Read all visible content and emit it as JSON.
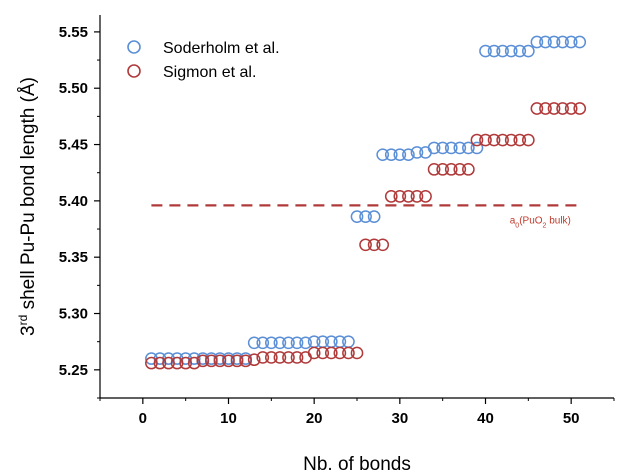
{
  "chart_data": {
    "type": "scatter",
    "xlabel": "Nb. of bonds",
    "ylabel_parts": {
      "pre": "3",
      "sup": "rd",
      "post": " shell Pu-Pu bond length (Å)"
    },
    "xlim": [
      -5,
      55
    ],
    "ylim": [
      5.225,
      5.565
    ],
    "x_ticks": [
      0,
      10,
      20,
      30,
      40,
      50
    ],
    "x_tick_labels": [
      "0",
      "10",
      "20",
      "30",
      "40",
      "50"
    ],
    "y_ticks": [
      5.25,
      5.3,
      5.35,
      5.4,
      5.45,
      5.5,
      5.55
    ],
    "y_tick_labels": [
      "5.25",
      "5.30",
      "5.35",
      "5.40",
      "5.45",
      "5.50",
      "5.55"
    ],
    "grid": false,
    "legend_position": "top-left",
    "series": [
      {
        "name": "Soderholm et al.",
        "color": "#5b8fd6",
        "marker": "open-circle",
        "x": [
          1,
          2,
          3,
          4,
          5,
          6,
          7,
          8,
          9,
          10,
          11,
          12,
          13,
          14,
          15,
          16,
          17,
          18,
          19,
          20,
          21,
          22,
          23,
          24,
          25,
          26,
          27,
          28,
          29,
          30,
          31,
          32,
          33,
          34,
          35,
          36,
          37,
          38,
          39,
          40,
          41,
          42,
          43,
          44,
          45,
          46,
          47,
          48,
          49,
          50,
          51
        ],
        "y": [
          5.26,
          5.26,
          5.26,
          5.26,
          5.26,
          5.26,
          5.26,
          5.26,
          5.26,
          5.26,
          5.26,
          5.26,
          5.274,
          5.274,
          5.274,
          5.274,
          5.274,
          5.274,
          5.274,
          5.275,
          5.275,
          5.275,
          5.275,
          5.275,
          5.386,
          5.386,
          5.386,
          5.441,
          5.441,
          5.441,
          5.441,
          5.443,
          5.443,
          5.447,
          5.447,
          5.447,
          5.447,
          5.447,
          5.447,
          5.533,
          5.533,
          5.533,
          5.533,
          5.533,
          5.533,
          5.541,
          5.541,
          5.541,
          5.541,
          5.541,
          5.541
        ]
      },
      {
        "name": "Sigmon et al.",
        "color": "#b03a3a",
        "marker": "open-circle",
        "x": [
          1,
          2,
          3,
          4,
          5,
          6,
          7,
          8,
          9,
          10,
          11,
          12,
          13,
          14,
          15,
          16,
          17,
          18,
          19,
          20,
          21,
          22,
          23,
          24,
          25,
          26,
          27,
          28,
          29,
          30,
          31,
          32,
          33,
          34,
          35,
          36,
          37,
          38,
          39,
          40,
          41,
          42,
          43,
          44,
          45,
          46,
          47,
          48,
          49,
          50,
          51
        ],
        "y": [
          5.256,
          5.256,
          5.256,
          5.256,
          5.256,
          5.256,
          5.258,
          5.258,
          5.258,
          5.258,
          5.258,
          5.258,
          5.259,
          5.261,
          5.261,
          5.261,
          5.261,
          5.261,
          5.261,
          5.265,
          5.265,
          5.265,
          5.265,
          5.265,
          5.265,
          5.361,
          5.361,
          5.361,
          5.404,
          5.404,
          5.404,
          5.404,
          5.404,
          5.428,
          5.428,
          5.428,
          5.428,
          5.428,
          5.454,
          5.454,
          5.454,
          5.454,
          5.454,
          5.454,
          5.454,
          5.482,
          5.482,
          5.482,
          5.482,
          5.482,
          5.482
        ]
      }
    ],
    "reference_line": {
      "y": 5.396,
      "x_range": [
        1,
        51
      ],
      "color": "#b03a3a",
      "style": "dashed",
      "label": {
        "pre": "a",
        "sub1": "0",
        "mid": "(PuO",
        "sub2": "2",
        "post": " bulk)"
      }
    }
  }
}
